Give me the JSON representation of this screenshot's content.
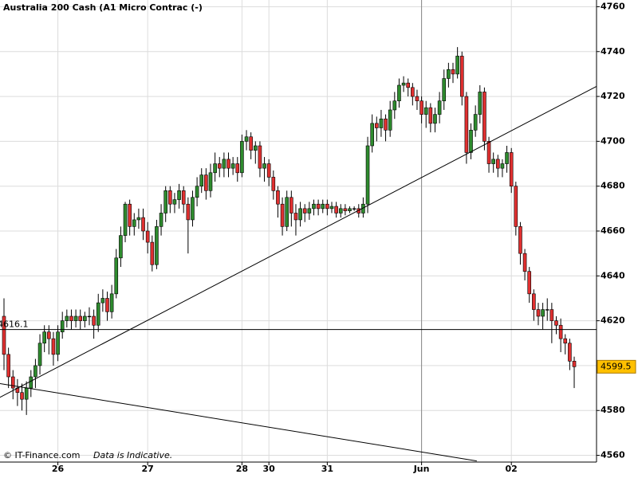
{
  "chart_data": {
    "type": "candlestick",
    "title": "Australia 200 Cash (A1 Micro Contrac (-)",
    "footer": "© IT-Finance.com",
    "disclaimer": "Data is Indicative.",
    "xlim": [
      -0.89,
      131.97
    ],
    "xticks": [
      {
        "value": 12,
        "label": "26"
      },
      {
        "value": 32,
        "label": "27"
      },
      {
        "value": 53,
        "label": "28"
      },
      {
        "value": 59,
        "label": "30"
      },
      {
        "value": 72,
        "label": "31"
      },
      {
        "value": 93,
        "label": "Jun"
      },
      {
        "value": 113,
        "label": "02"
      }
    ],
    "ylim": [
      4557,
      4763
    ],
    "yticks": [
      4560,
      4580,
      4600,
      4620,
      4640,
      4660,
      4680,
      4700,
      4720,
      4740,
      4760
    ],
    "grid": true,
    "up_color": "#2e8b2e",
    "down_color": "#e03030",
    "vline": 93,
    "hline": 4616.1,
    "price_marker": 4599.5,
    "trendlines": [
      {
        "x": [
          -0.89,
          131.97
        ],
        "y": [
          4585.9,
          4724.5
        ]
      },
      {
        "x": [
          -0.89,
          105.3
        ],
        "y": [
          4592.0,
          4557.5
        ]
      }
    ],
    "open": [
      4622,
      4605,
      4595,
      4590,
      4588,
      4585,
      4590,
      4595,
      4600,
      4610,
      4615,
      4612,
      4605,
      4615,
      4620,
      4622,
      4620,
      4622,
      4620,
      4622,
      4622,
      4618,
      4628,
      4630,
      4624,
      4632,
      4648,
      4658,
      4672,
      4662,
      4665,
      4666,
      4660,
      4655,
      4645,
      4662,
      4668,
      4678,
      4672,
      4674,
      4678,
      4672,
      4665,
      4675,
      4680,
      4685,
      4678,
      4686,
      4690,
      4688,
      4692,
      4688,
      4690,
      4686,
      4700,
      4702,
      4696,
      4698,
      4688,
      4690,
      4684,
      4678,
      4672,
      4662,
      4675,
      4668,
      4665,
      4670,
      4668,
      4670,
      4672,
      4670,
      4672,
      4670,
      4671,
      4668,
      4670,
      4669,
      4670,
      4670,
      4668,
      4672,
      4698,
      4708,
      4706,
      4710,
      4705,
      4714,
      4718,
      4725,
      4726,
      4724,
      4720,
      4718,
      4712,
      4715,
      4708,
      4712,
      4718,
      4728,
      4732,
      4730,
      4738,
      4720,
      4695,
      4705,
      4712,
      4722,
      4700,
      4690,
      4692,
      4688,
      4690,
      4695,
      4680,
      4662,
      4650,
      4642,
      4632,
      4625,
      4622,
      4625,
      4625,
      4620,
      4618,
      4612,
      4610,
      4602
    ],
    "high": [
      4630,
      4608,
      4598,
      4594,
      4592,
      4593,
      4598,
      4603,
      4614,
      4618,
      4618,
      4615,
      4618,
      4624,
      4625,
      4625,
      4625,
      4625,
      4624,
      4626,
      4625,
      4632,
      4634,
      4633,
      4636,
      4652,
      4662,
      4673,
      4674,
      4668,
      4670,
      4670,
      4664,
      4658,
      4665,
      4672,
      4680,
      4680,
      4677,
      4681,
      4680,
      4675,
      4678,
      4684,
      4688,
      4688,
      4690,
      4695,
      4693,
      4695,
      4695,
      4693,
      4693,
      4703,
      4705,
      4704,
      4700,
      4700,
      4693,
      4692,
      4687,
      4680,
      4675,
      4678,
      4678,
      4672,
      4673,
      4672,
      4673,
      4674,
      4674,
      4674,
      4674,
      4673,
      4673,
      4672,
      4672,
      4671,
      4671,
      4672,
      4675,
      4702,
      4712,
      4711,
      4714,
      4712,
      4718,
      4722,
      4728,
      4729,
      4728,
      4726,
      4723,
      4720,
      4718,
      4717,
      4715,
      4722,
      4732,
      4735,
      4735,
      4742,
      4740,
      4722,
      4708,
      4716,
      4725,
      4724,
      4702,
      4695,
      4694,
      4692,
      4698,
      4697,
      4682,
      4664,
      4652,
      4644,
      4634,
      4628,
      4628,
      4630,
      4628,
      4622,
      4621,
      4614,
      4612,
      4604
    ],
    "low": [
      4598,
      4590,
      4585,
      4582,
      4580,
      4578,
      4586,
      4590,
      4596,
      4606,
      4605,
      4600,
      4602,
      4612,
      4617,
      4616,
      4617,
      4616,
      4617,
      4618,
      4612,
      4615,
      4624,
      4620,
      4621,
      4630,
      4644,
      4655,
      4658,
      4658,
      4661,
      4656,
      4650,
      4642,
      4643,
      4658,
      4664,
      4668,
      4668,
      4670,
      4668,
      4650,
      4662,
      4671,
      4677,
      4674,
      4675,
      4682,
      4684,
      4684,
      4684,
      4685,
      4682,
      4684,
      4696,
      4692,
      4690,
      4684,
      4682,
      4680,
      4674,
      4666,
      4658,
      4660,
      4662,
      4658,
      4662,
      4664,
      4665,
      4667,
      4667,
      4668,
      4667,
      4668,
      4666,
      4666,
      4667,
      4668,
      4669,
      4666,
      4666,
      4668,
      4695,
      4700,
      4702,
      4700,
      4702,
      4710,
      4715,
      4722,
      4720,
      4716,
      4714,
      4708,
      4706,
      4704,
      4704,
      4708,
      4714,
      4724,
      4726,
      4728,
      4716,
      4690,
      4692,
      4702,
      4708,
      4696,
      4686,
      4686,
      4684,
      4684,
      4686,
      4677,
      4658,
      4645,
      4638,
      4628,
      4620,
      4618,
      4616,
      4620,
      4610,
      4614,
      4606,
      4605,
      4598,
      4590
    ],
    "close": [
      4605,
      4595,
      4590,
      4588,
      4585,
      4590,
      4595,
      4600,
      4610,
      4615,
      4612,
      4605,
      4615,
      4620,
      4622,
      4620,
      4622,
      4620,
      4622,
      4622,
      4618,
      4628,
      4630,
      4624,
      4632,
      4648,
      4658,
      4672,
      4662,
      4665,
      4666,
      4660,
      4655,
      4645,
      4662,
      4668,
      4678,
      4672,
      4674,
      4678,
      4672,
      4665,
      4675,
      4680,
      4685,
      4678,
      4686,
      4690,
      4688,
      4692,
      4688,
      4690,
      4686,
      4700,
      4702,
      4696,
      4698,
      4688,
      4690,
      4684,
      4678,
      4672,
      4662,
      4675,
      4668,
      4665,
      4670,
      4668,
      4670,
      4672,
      4670,
      4672,
      4670,
      4671,
      4668,
      4670,
      4669,
      4670,
      4670,
      4668,
      4672,
      4698,
      4708,
      4706,
      4710,
      4705,
      4714,
      4718,
      4725,
      4726,
      4724,
      4720,
      4718,
      4712,
      4715,
      4708,
      4712,
      4718,
      4728,
      4732,
      4730,
      4738,
      4720,
      4695,
      4705,
      4712,
      4722,
      4700,
      4690,
      4692,
      4688,
      4690,
      4695,
      4680,
      4662,
      4650,
      4642,
      4632,
      4625,
      4622,
      4625,
      4625,
      4620,
      4618,
      4612,
      4610,
      4602,
      4599.5
    ]
  }
}
